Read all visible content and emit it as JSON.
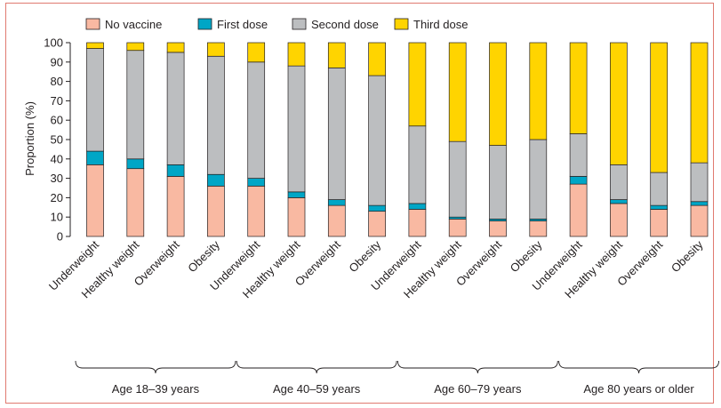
{
  "chart_data": {
    "type": "bar",
    "stacked": true,
    "ylabel": "Proportion (%)",
    "ylim": [
      0,
      100
    ],
    "yticks": [
      0,
      10,
      20,
      30,
      40,
      50,
      60,
      70,
      80,
      90,
      100
    ],
    "legend_position": "top",
    "categories": [
      "Underweight",
      "Healthy weight",
      "Overweight",
      "Obesity",
      "Underweight",
      "Healthy weight",
      "Overweight",
      "Obesity",
      "Underweight",
      "Healthy weight",
      "Overweight",
      "Obesity",
      "Underweight",
      "Healthy weight",
      "Overweight",
      "Obesity"
    ],
    "groups": [
      {
        "label": "Age 18–39 years",
        "start": 0,
        "count": 4
      },
      {
        "label": "Age 40–59 years",
        "start": 4,
        "count": 4
      },
      {
        "label": "Age 60–79 years",
        "start": 8,
        "count": 4
      },
      {
        "label": "Age 80 years or older",
        "start": 12,
        "count": 4
      }
    ],
    "series": [
      {
        "name": "No vaccine",
        "color": "#f9b9a2",
        "values": [
          37,
          35,
          31,
          26,
          26,
          20,
          16,
          13,
          14,
          9,
          8,
          8,
          27,
          17,
          14,
          16
        ]
      },
      {
        "name": "First dose",
        "color": "#00a6c6",
        "values": [
          7,
          5,
          6,
          6,
          4,
          3,
          3,
          3,
          3,
          1,
          1,
          1,
          4,
          2,
          2,
          2
        ]
      },
      {
        "name": "Second dose",
        "color": "#bcbec0",
        "values": [
          53,
          56,
          58,
          61,
          60,
          65,
          68,
          67,
          40,
          39,
          38,
          41,
          22,
          18,
          17,
          20
        ]
      },
      {
        "name": "Third dose",
        "color": "#ffd400",
        "values": [
          3,
          4,
          5,
          7,
          10,
          12,
          13,
          17,
          43,
          51,
          53,
          50,
          47,
          63,
          67,
          62
        ]
      }
    ]
  }
}
